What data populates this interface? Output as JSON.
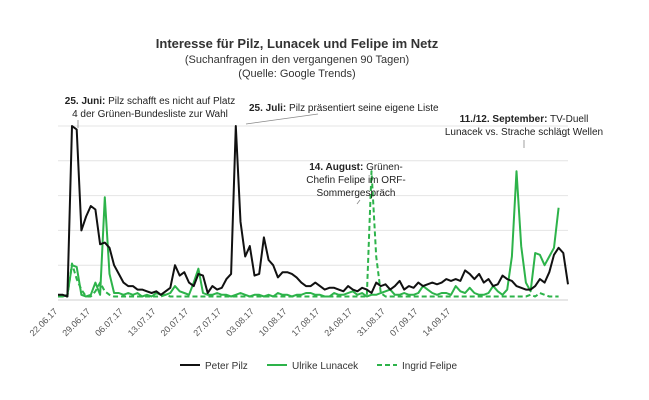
{
  "chart_data": {
    "type": "line",
    "title": "Interesse für Pilz, Lunacek und Felipe im Netz",
    "subtitle_line1": "(Suchanfragen in den vergangenen 90 Tagen)",
    "subtitle_line2": "(Quelle: Google Trends)",
    "xlabel": "",
    "ylabel": "",
    "x_tick_labels": [
      "22.06.17",
      "29.06.17",
      "06.07.17",
      "13.07.17",
      "20.07.17",
      "27.07.17",
      "03.08.17",
      "10.08.17",
      "17.08.17",
      "24.08.17",
      "31.08.17",
      "07.09.17",
      "14.09.17"
    ],
    "x_start": "2017-06-22",
    "ylim": [
      0,
      100
    ],
    "grid": "horizontal",
    "legend_position": "bottom",
    "series": [
      {
        "name": "Peter Pilz",
        "color": "#111111",
        "dash": "solid",
        "values": [
          3,
          3,
          2,
          100,
          98,
          40,
          48,
          54,
          52,
          32,
          33,
          30,
          20,
          15,
          10,
          8,
          8,
          6,
          6,
          5,
          4,
          5,
          3,
          5,
          7,
          20,
          14,
          16,
          10,
          8,
          15,
          14,
          4,
          8,
          6,
          7,
          12,
          15,
          100,
          45,
          25,
          31,
          14,
          15,
          36,
          23,
          20,
          13,
          16,
          16,
          15,
          13,
          10,
          8,
          8,
          10,
          8,
          6,
          7,
          7,
          6,
          5,
          8,
          6,
          5,
          7,
          6,
          4,
          10,
          8,
          9,
          6,
          8,
          11,
          6,
          8,
          7,
          10,
          8,
          9,
          10,
          9,
          10,
          12,
          11,
          12,
          11,
          17,
          15,
          12,
          15,
          10,
          12,
          8,
          9,
          14,
          12,
          11,
          8,
          7,
          6,
          6,
          8,
          12,
          10,
          16,
          26,
          30,
          27,
          9
        ]
      },
      {
        "name": "Ulrike Lunacek",
        "color": "#2db34a",
        "dash": "solid",
        "values": [
          2,
          2,
          3,
          20,
          19,
          3,
          2,
          3,
          10,
          3,
          59,
          15,
          4,
          4,
          3,
          4,
          3,
          4,
          2,
          3,
          2,
          4,
          3,
          3,
          4,
          8,
          5,
          4,
          3,
          10,
          18,
          4,
          3,
          3,
          4,
          3,
          3,
          2,
          3,
          4,
          3,
          2,
          3,
          3,
          2,
          3,
          2,
          4,
          3,
          3,
          2,
          3,
          3,
          4,
          4,
          3,
          3,
          2,
          2,
          4,
          3,
          3,
          4,
          5,
          3,
          4,
          2,
          3,
          3,
          4,
          5,
          6,
          3,
          3,
          4,
          3,
          3,
          4,
          8,
          6,
          4,
          3,
          4,
          4,
          3,
          8,
          5,
          4,
          7,
          4,
          3,
          3,
          4,
          8,
          5,
          3,
          6,
          25,
          74,
          31,
          10,
          5,
          27,
          26,
          20,
          25,
          30,
          53
        ]
      },
      {
        "name": "Ingrid Felipe",
        "color": "#2db34a",
        "dash": "dashed",
        "values": [
          2,
          2,
          2,
          21,
          12,
          6,
          2,
          2,
          5,
          10,
          5,
          3,
          2,
          2,
          2,
          2,
          2,
          2,
          2,
          2,
          2,
          2,
          2,
          3,
          2,
          2,
          2,
          2,
          2,
          2,
          2,
          2,
          2,
          2,
          2,
          2,
          2,
          2,
          2,
          2,
          2,
          2,
          2,
          2,
          2,
          2,
          2,
          2,
          2,
          2,
          2,
          2,
          2,
          2,
          2,
          2,
          2,
          2,
          2,
          2,
          2,
          2,
          2,
          2,
          2,
          2,
          2,
          74,
          25,
          4,
          2,
          2,
          2,
          2,
          2,
          2,
          2,
          2,
          2,
          2,
          2,
          2,
          2,
          2,
          2,
          2,
          2,
          2,
          2,
          2,
          2,
          2,
          2,
          2,
          2,
          2,
          2,
          2,
          2,
          2,
          2,
          3,
          2,
          4,
          3,
          2,
          2,
          2
        ]
      }
    ],
    "annotations": [
      {
        "bold": "25. Juni:",
        "text1": " Pilz schafft es nicht auf Platz",
        "text2": "4 der Grünen-Bundesliste zur Wahl"
      },
      {
        "bold": "25. Juli:",
        "text1": " Pilz präsentiert seine eigene Liste"
      },
      {
        "bold": "14. August:",
        "text1": " Grünen-",
        "text2": "Chefin Felipe im ORF-",
        "text3": "Sommergespräch"
      },
      {
        "bold": "11./12. September:",
        "text1": " TV-Duell",
        "text2": "Lunacek vs. Strache schlägt Wellen"
      }
    ]
  }
}
